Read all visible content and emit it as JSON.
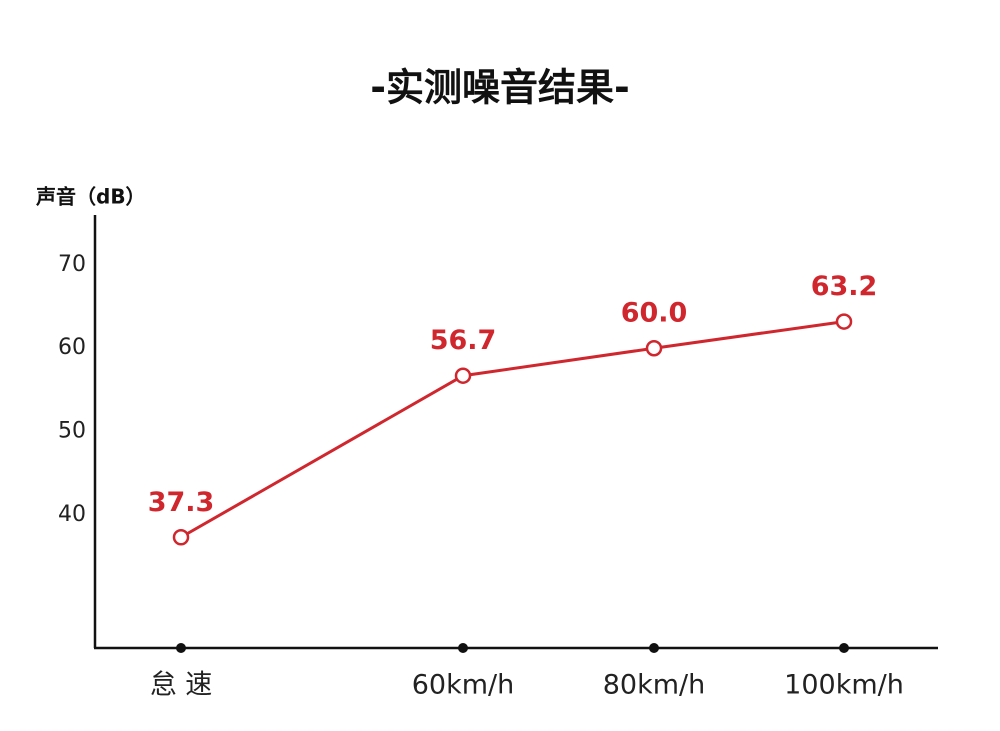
{
  "chart_data": {
    "type": "line",
    "title": "-实测噪音结果-",
    "y_label": "声音（dB）",
    "categories": [
      "怠 速",
      "60km/h",
      "80km/h",
      "100km/h"
    ],
    "values": [
      37.3,
      56.7,
      60,
      63.2
    ],
    "value_labels": [
      "37.3",
      "56.7",
      "60.0",
      "63.2"
    ],
    "color": "#d0262d",
    "ylim": [
      24,
      76
    ],
    "yticks": [
      40,
      50,
      60,
      70
    ],
    "grid": false
  }
}
